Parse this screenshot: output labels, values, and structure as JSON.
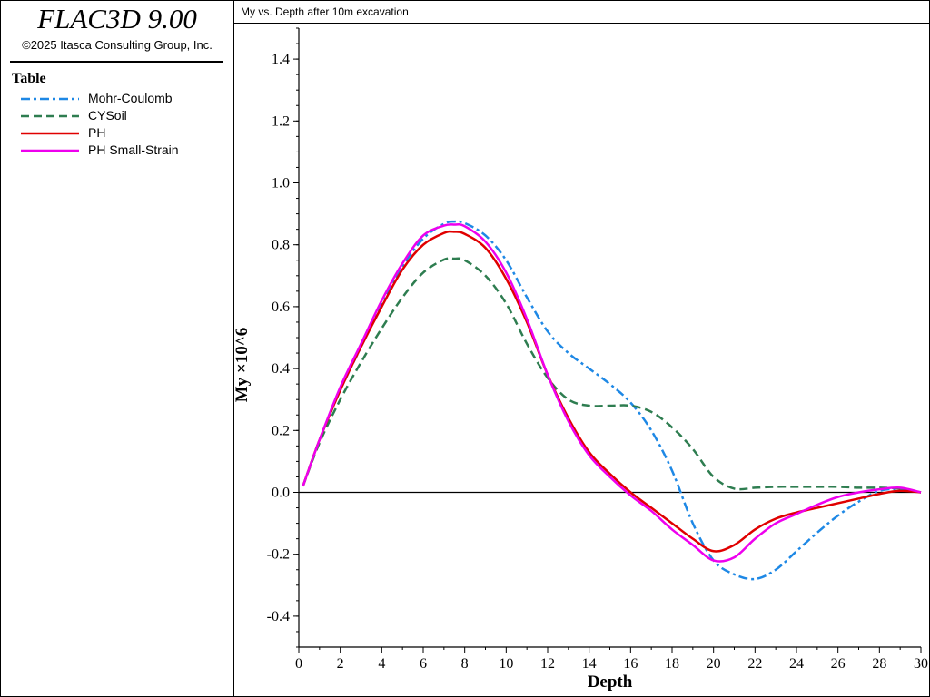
{
  "app": {
    "title": "FLAC3D 9.00",
    "copyright": "©2025 Itasca Consulting Group, Inc."
  },
  "legend": {
    "title": "Table",
    "items": [
      {
        "label": "Mohr-Coulomb",
        "color": "#1e88e5",
        "dash": "dash-dot"
      },
      {
        "label": "CYSoil",
        "color": "#2e7d50",
        "dash": "dashed"
      },
      {
        "label": "PH",
        "color": "#e00000",
        "dash": "solid"
      },
      {
        "label": "PH Small-Strain",
        "color": "#ee00ee",
        "dash": "solid"
      }
    ]
  },
  "plot": {
    "title": "My vs. Depth after 10m excavation"
  },
  "chart_data": {
    "type": "line",
    "title": "My vs. Depth after 10m excavation",
    "xlabel": "Depth",
    "ylabel": "My ×10^6",
    "xlim": [
      0,
      30
    ],
    "ylim": [
      -0.5,
      1.5
    ],
    "xticks": [
      0,
      2,
      4,
      6,
      8,
      10,
      12,
      14,
      16,
      18,
      20,
      22,
      24,
      26,
      28,
      30
    ],
    "yticks": [
      -0.4,
      -0.2,
      0.0,
      0.2,
      0.4,
      0.6,
      0.8,
      1.0,
      1.2,
      1.4
    ],
    "ytick_labels": [
      "-0.4",
      "-0.2",
      "0.0",
      "0.2",
      "0.4",
      "0.6",
      "0.8",
      "1.0",
      "1.2",
      "1.4"
    ],
    "zero_line": true,
    "series": [
      {
        "name": "Mohr-Coulomb",
        "x": [
          0.2,
          1,
          2,
          3,
          4,
          5,
          6,
          7,
          7.5,
          8,
          9,
          10,
          11,
          12,
          13,
          14,
          15,
          16,
          17,
          18,
          19,
          20,
          21,
          22,
          23,
          24,
          25,
          26,
          27,
          28,
          29,
          30
        ],
        "y": [
          0.02,
          0.17,
          0.33,
          0.47,
          0.61,
          0.73,
          0.82,
          0.868,
          0.875,
          0.87,
          0.83,
          0.75,
          0.63,
          0.52,
          0.45,
          0.4,
          0.35,
          0.29,
          0.2,
          0.07,
          -0.1,
          -0.22,
          -0.265,
          -0.28,
          -0.25,
          -0.19,
          -0.13,
          -0.075,
          -0.03,
          0.005,
          0.01,
          0.0
        ]
      },
      {
        "name": "CYSoil",
        "x": [
          0.2,
          1,
          2,
          3,
          4,
          5,
          6,
          7,
          7.5,
          8,
          9,
          10,
          11,
          12,
          13,
          14,
          15,
          16,
          17,
          18,
          19,
          20,
          21,
          22,
          23,
          24,
          25,
          26,
          27,
          28,
          29,
          30
        ],
        "y": [
          0.02,
          0.16,
          0.3,
          0.42,
          0.53,
          0.63,
          0.71,
          0.752,
          0.755,
          0.75,
          0.7,
          0.61,
          0.48,
          0.37,
          0.3,
          0.28,
          0.28,
          0.28,
          0.26,
          0.21,
          0.14,
          0.05,
          0.012,
          0.015,
          0.018,
          0.018,
          0.018,
          0.018,
          0.015,
          0.015,
          0.012,
          0.0
        ]
      },
      {
        "name": "PH",
        "x": [
          0.2,
          1,
          2,
          3,
          4,
          5,
          6,
          7,
          7.5,
          8,
          9,
          10,
          11,
          12,
          13,
          14,
          15,
          16,
          17,
          18,
          19,
          20,
          21,
          22,
          23,
          24,
          25,
          26,
          27,
          28,
          29,
          30
        ],
        "y": [
          0.02,
          0.17,
          0.33,
          0.47,
          0.6,
          0.72,
          0.8,
          0.838,
          0.842,
          0.835,
          0.79,
          0.69,
          0.55,
          0.38,
          0.24,
          0.13,
          0.06,
          0.0,
          -0.05,
          -0.1,
          -0.15,
          -0.19,
          -0.17,
          -0.12,
          -0.085,
          -0.065,
          -0.05,
          -0.035,
          -0.02,
          -0.005,
          0.005,
          0.0
        ]
      },
      {
        "name": "PH Small-Strain",
        "x": [
          0.2,
          1,
          2,
          3,
          4,
          5,
          6,
          7,
          7.5,
          8,
          9,
          10,
          11,
          12,
          13,
          14,
          15,
          16,
          17,
          18,
          19,
          20,
          21,
          22,
          23,
          24,
          25,
          26,
          27,
          28,
          29,
          30
        ],
        "y": [
          0.02,
          0.17,
          0.34,
          0.48,
          0.62,
          0.74,
          0.83,
          0.862,
          0.865,
          0.86,
          0.81,
          0.71,
          0.56,
          0.38,
          0.23,
          0.12,
          0.05,
          -0.01,
          -0.06,
          -0.12,
          -0.17,
          -0.22,
          -0.21,
          -0.15,
          -0.1,
          -0.07,
          -0.04,
          -0.015,
          0.0,
          0.01,
          0.015,
          0.0
        ]
      }
    ]
  }
}
